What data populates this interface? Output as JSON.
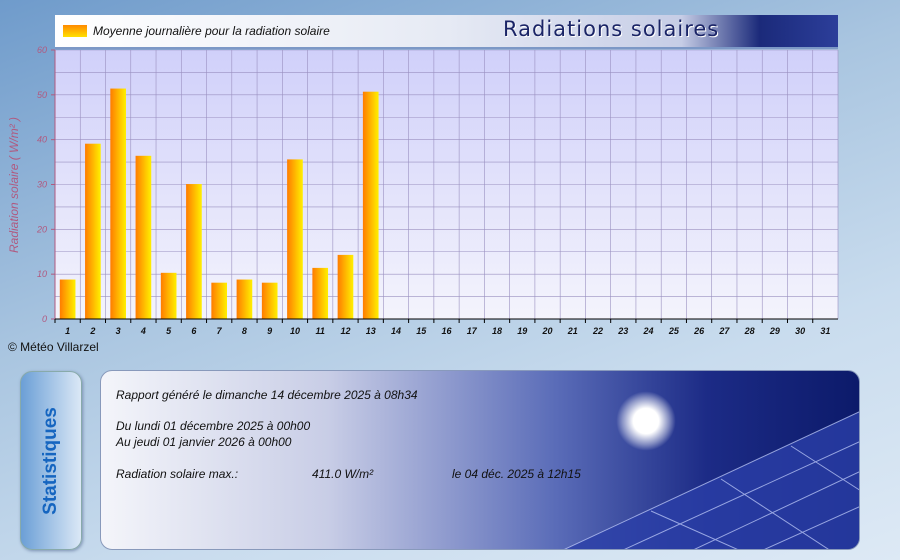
{
  "header": {
    "legend": "Moyenne journalière pour la radiation solaire",
    "title": "Radiations solaires"
  },
  "copyright": "© Météo Villarzel",
  "stats": {
    "tab_label": "Statistiques",
    "report": "Rapport généré le dimanche 14 décembre 2025 à 08h34",
    "from": "Du lundi 01 décembre 2025 à 00h00",
    "to": "Au jeudi 01 janvier 2026 à 00h00",
    "max_label": "Radiation solaire max.:",
    "max_value": "411.0 W/m²",
    "max_date": "le 04 déc. 2025 à 12h15"
  },
  "chart_data": {
    "type": "bar",
    "title": "Radiations solaires",
    "ylabel": "Radiation solaire ( W/m² )",
    "xlabel": "",
    "ylim": [
      0,
      60
    ],
    "yticks": [
      0,
      10,
      20,
      30,
      40,
      50,
      60
    ],
    "grid": true,
    "legend": "top-left",
    "series": [
      {
        "name": "Moyenne journalière pour la radiation solaire",
        "color": "#ffa000"
      }
    ],
    "categories": [
      "1",
      "2",
      "3",
      "4",
      "5",
      "6",
      "7",
      "8",
      "9",
      "10",
      "11",
      "12",
      "13",
      "14",
      "15",
      "16",
      "17",
      "18",
      "19",
      "20",
      "21",
      "22",
      "23",
      "24",
      "25",
      "26",
      "27",
      "28",
      "29",
      "30",
      "31"
    ],
    "values": [
      8.8,
      39.1,
      51.4,
      36.4,
      10.3,
      30.1,
      8.1,
      8.8,
      8.1,
      35.6,
      11.4,
      14.3,
      50.7,
      null,
      null,
      null,
      null,
      null,
      null,
      null,
      null,
      null,
      null,
      null,
      null,
      null,
      null,
      null,
      null,
      null,
      null
    ]
  }
}
